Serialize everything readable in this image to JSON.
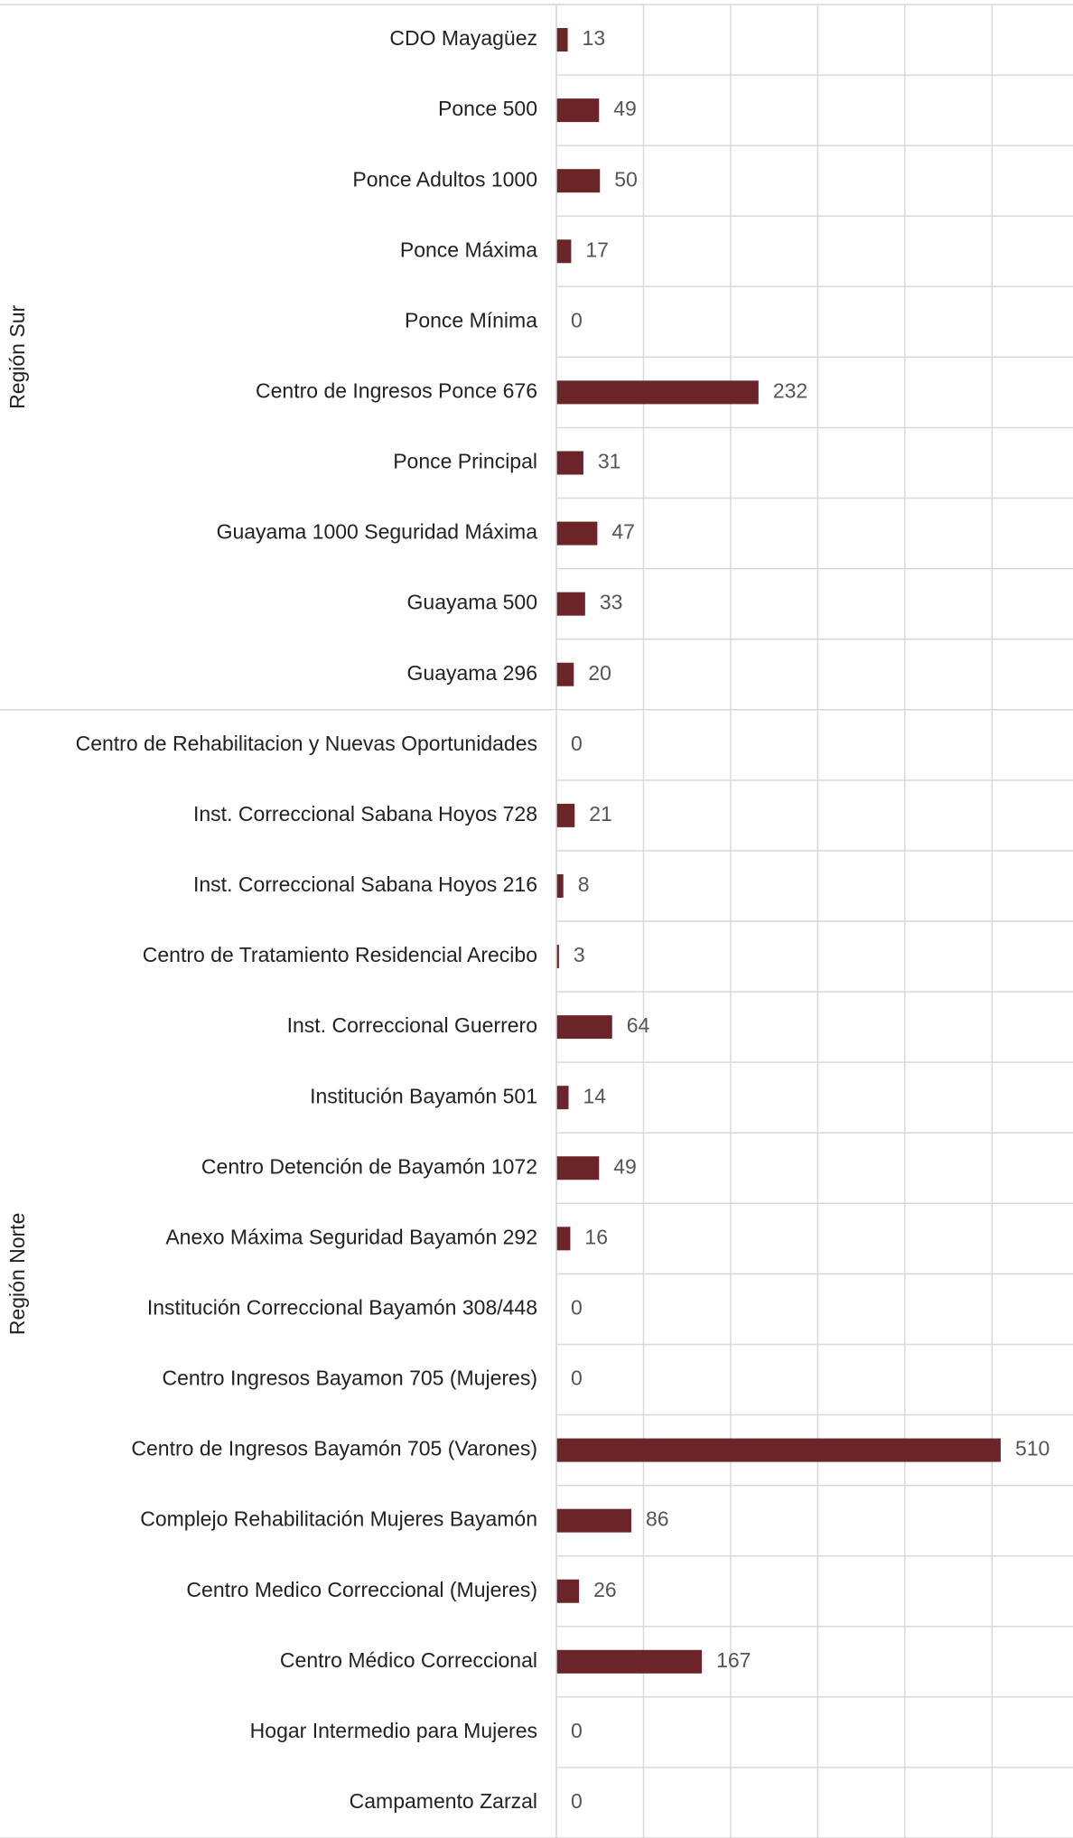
{
  "chart_data": {
    "type": "bar",
    "orientation": "horizontal",
    "color": "#6b2427",
    "grid": true,
    "xlim": [
      0,
      593
    ],
    "xticks": [
      0,
      100,
      200,
      300,
      400,
      500
    ],
    "groups": [
      {
        "name": "Región Sur",
        "categories": [
          "CDO Mayagüez",
          "Ponce 500",
          "Ponce Adultos 1000",
          "Ponce Máxima",
          "Ponce Mínima",
          "Centro de Ingresos Ponce 676",
          "Ponce Principal",
          "Guayama 1000 Seguridad Máxima",
          "Guayama 500",
          "Guayama 296"
        ],
        "values": [
          13,
          49,
          50,
          17,
          0,
          232,
          31,
          47,
          33,
          20
        ]
      },
      {
        "name": "Región Norte",
        "categories": [
          "Centro de Rehabilitacion y Nuevas Oportunidades",
          "Inst. Correccional Sabana Hoyos 728",
          "Inst. Correccional Sabana Hoyos  216",
          "Centro de Tratamiento Residencial Arecibo",
          "Inst. Correccional Guerrero",
          "Institución Bayamón 501",
          "Centro Detención de Bayamón 1072",
          "Anexo Máxima Seguridad Bayamón 292",
          "Institución Correccional Bayamón 308/448",
          "Centro Ingresos Bayamon 705 (Mujeres)",
          "Centro de Ingresos Bayamón 705  (Varones)",
          "Complejo Rehabilitación Mujeres Bayamón",
          "Centro Medico Correccional (Mujeres)",
          "Centro Médico Correccional",
          "Hogar Intermedio para Mujeres",
          "Campamento Zarzal"
        ],
        "values": [
          0,
          21,
          8,
          3,
          64,
          14,
          49,
          16,
          0,
          0,
          510,
          86,
          26,
          167,
          0,
          0
        ]
      }
    ]
  }
}
